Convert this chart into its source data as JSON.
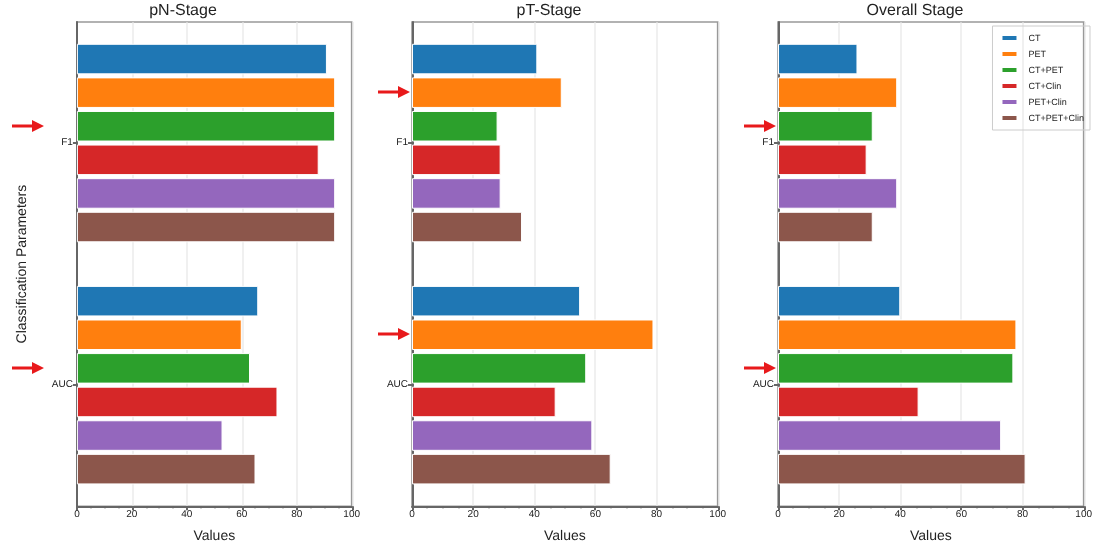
{
  "chart_data": [
    {
      "type": "bar",
      "orientation": "horizontal",
      "title": "pN-Stage",
      "xlabel": "Values",
      "ylabel": "Classification Parameters",
      "categories": [
        "F1",
        "AUC"
      ],
      "xlim": [
        0,
        100
      ],
      "xticks": [
        0,
        20,
        40,
        60,
        80,
        100
      ],
      "grid": "x",
      "legend": false,
      "series": [
        {
          "color": "#1f77b4",
          "values": [
            91,
            66
          ]
        },
        {
          "color": "#ff7f0e",
          "values": [
            94,
            60
          ]
        },
        {
          "color": "#2ca02c",
          "values": [
            94,
            63
          ]
        },
        {
          "color": "#d62728",
          "values": [
            88,
            73
          ]
        },
        {
          "color": "#9467bd",
          "values": [
            94,
            53
          ]
        },
        {
          "color": "#8c564b",
          "values": [
            94,
            65
          ]
        }
      ]
    },
    {
      "type": "bar",
      "orientation": "horizontal",
      "title": "pT-Stage",
      "xlabel": "Values",
      "categories": [
        "F1",
        "AUC"
      ],
      "xlim": [
        0,
        100
      ],
      "xticks": [
        0,
        20,
        40,
        60,
        80,
        100
      ],
      "grid": "x",
      "legend": false,
      "series": [
        {
          "color": "#1f77b4",
          "values": [
            41,
            55
          ]
        },
        {
          "color": "#ff7f0e",
          "values": [
            49,
            79
          ]
        },
        {
          "color": "#2ca02c",
          "values": [
            28,
            57
          ]
        },
        {
          "color": "#d62728",
          "values": [
            29,
            47
          ]
        },
        {
          "color": "#9467bd",
          "values": [
            29,
            59
          ]
        },
        {
          "color": "#8c564b",
          "values": [
            36,
            65
          ]
        }
      ]
    },
    {
      "type": "bar",
      "orientation": "horizontal",
      "title": "Overall Stage",
      "xlabel": "Values",
      "categories": [
        "F1",
        "AUC"
      ],
      "xlim": [
        0,
        100
      ],
      "xticks": [
        0,
        20,
        40,
        60,
        80,
        100
      ],
      "grid": "x",
      "legend": "top right",
      "series": [
        {
          "name": "CT",
          "color": "#1f77b4",
          "values": [
            26,
            40
          ]
        },
        {
          "name": "PET",
          "color": "#ff7f0e",
          "values": [
            39,
            78
          ]
        },
        {
          "name": "CT+PET",
          "color": "#2ca02c",
          "values": [
            31,
            77
          ]
        },
        {
          "name": "CT+Clin",
          "color": "#d62728",
          "values": [
            29,
            46
          ]
        },
        {
          "name": "PET+Clin",
          "color": "#9467bd",
          "values": [
            39,
            73
          ]
        },
        {
          "name": "CT+PET+Clin",
          "color": "#8c564b",
          "values": [
            31,
            81
          ]
        }
      ]
    }
  ]
}
